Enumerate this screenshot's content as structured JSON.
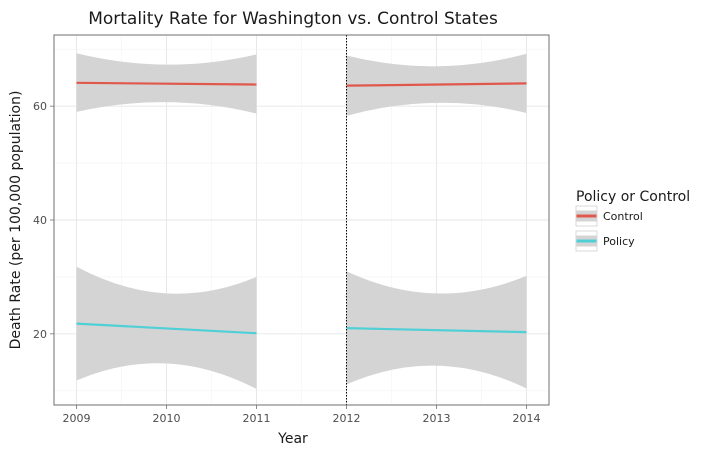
{
  "chart_data": {
    "type": "line",
    "title": "Mortality Rate for Washington vs. Control States",
    "xlabel": "Year",
    "ylabel": "Death Rate (per 100,000 population)",
    "x_ticks": [
      2009,
      2010,
      2011,
      2012,
      2013,
      2014
    ],
    "y_ticks": [
      20,
      40,
      60
    ],
    "xlim": [
      2008.75,
      2014.25
    ],
    "ylim": [
      7.5,
      72.5
    ],
    "grid": true,
    "cutoff_line": {
      "x": 2012,
      "style": "dotted"
    },
    "legend": {
      "title": "Policy or Control",
      "placement": "right",
      "entries": [
        {
          "label": "Control",
          "color": "#e0584c"
        },
        {
          "label": "Policy",
          "color": "#4fcfd6"
        }
      ]
    },
    "band_color": "#d4d4d4",
    "series": [
      {
        "name": "Control",
        "color": "#e0584c",
        "segments": [
          {
            "x": [
              2009,
              2011
            ],
            "y": [
              64.1,
              63.8
            ],
            "ci_upper": [
              69.3,
              69.1
            ],
            "ci_lower": [
              59.0,
              58.7
            ],
            "ci_mid_upper": 67.3,
            "ci_mid_lower": 60.7
          },
          {
            "x": [
              2012,
              2014
            ],
            "y": [
              63.6,
              64.0
            ],
            "ci_upper": [
              68.9,
              69.2
            ],
            "ci_lower": [
              58.3,
              58.8
            ],
            "ci_mid_upper": 67.0,
            "ci_mid_lower": 60.6
          }
        ]
      },
      {
        "name": "Policy",
        "color": "#4fcfd6",
        "segments": [
          {
            "x": [
              2009,
              2011
            ],
            "y": [
              21.8,
              20.1
            ],
            "ci_upper": [
              31.8,
              30.0
            ],
            "ci_lower": [
              11.8,
              10.3
            ],
            "ci_mid_upper": 27.1,
            "ci_mid_lower": 14.8
          },
          {
            "x": [
              2012,
              2014
            ],
            "y": [
              21.0,
              20.3
            ],
            "ci_upper": [
              31.0,
              30.2
            ],
            "ci_lower": [
              11.1,
              10.4
            ],
            "ci_mid_upper": 27.1,
            "ci_mid_lower": 14.4
          }
        ]
      }
    ]
  }
}
